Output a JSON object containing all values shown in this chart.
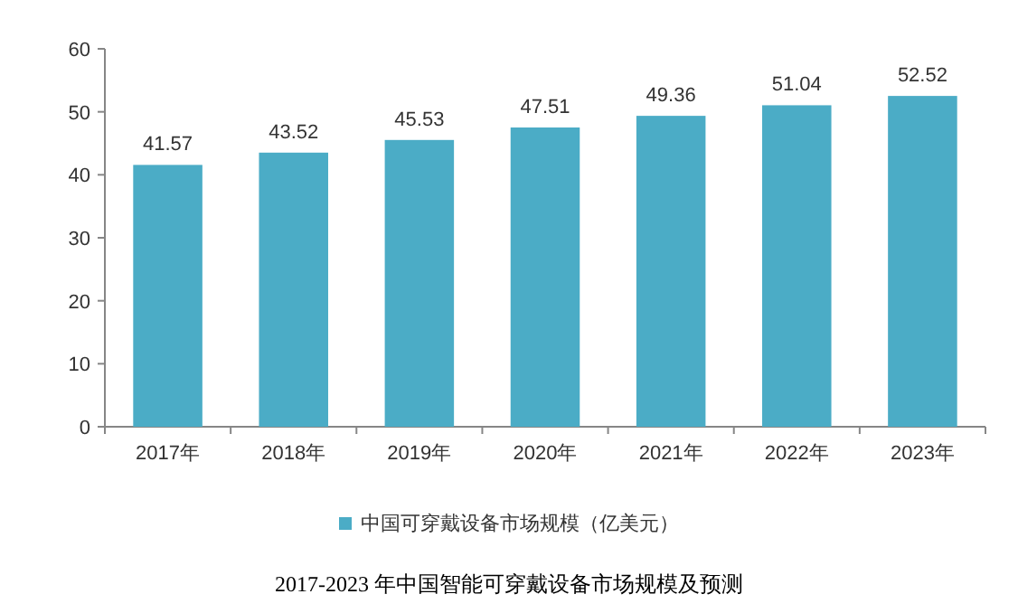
{
  "chart_data": {
    "type": "bar",
    "title": "2017-2023 年中国智能可穿戴设备市场规模及预测",
    "categories": [
      "2017年",
      "2018年",
      "2019年",
      "2020年",
      "2021年",
      "2022年",
      "2023年"
    ],
    "series": [
      {
        "name": "中国可穿戴设备市场规模（亿美元）",
        "color": "#4bacc6",
        "values": [
          41.57,
          43.52,
          45.53,
          47.51,
          49.36,
          51.04,
          52.52
        ]
      }
    ],
    "ylim": [
      0,
      60
    ],
    "yticks": [
      0,
      10,
      20,
      30,
      40,
      50,
      60
    ],
    "grid": false,
    "legend": "bottom",
    "data_labels": true
  }
}
